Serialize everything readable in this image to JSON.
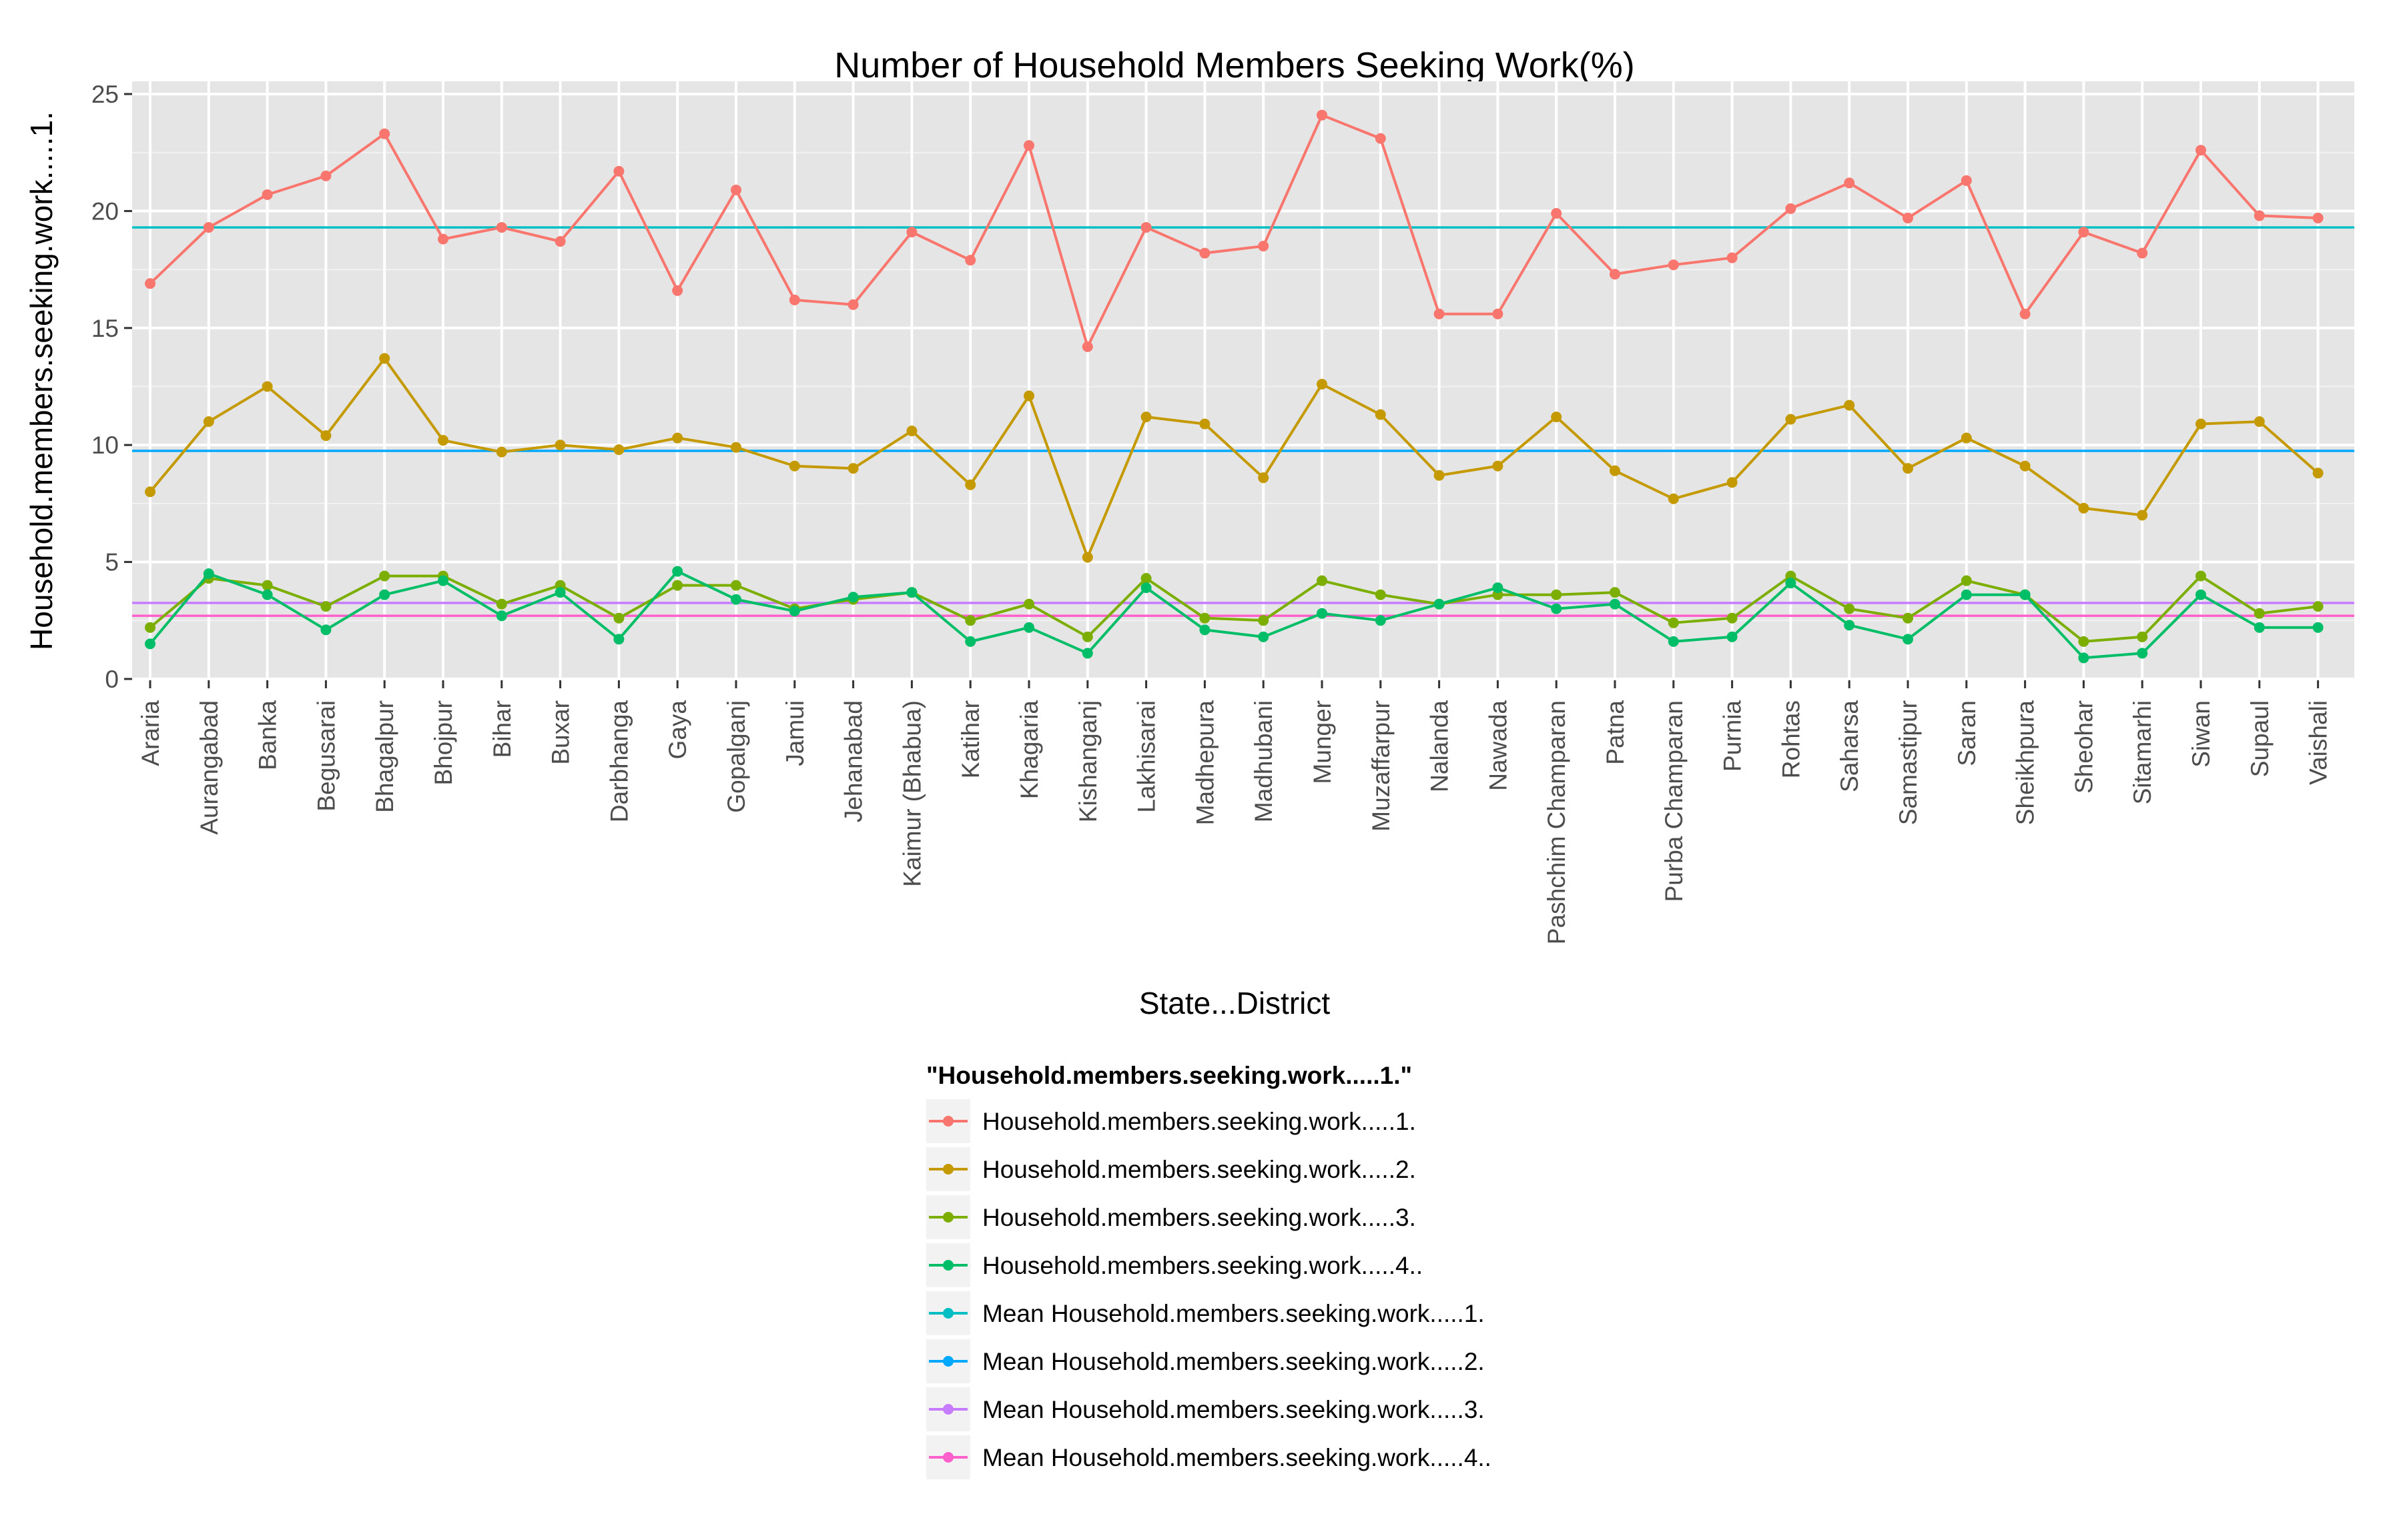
{
  "chart_data": {
    "type": "line",
    "title": "Number of Household Members Seeking Work(%)",
    "xlabel": "State...District",
    "ylabel": "Household.members.seeking.work.....1.",
    "ylim": [
      0,
      25
    ],
    "yticks": [
      0,
      5,
      10,
      15,
      20,
      25
    ],
    "grid": true,
    "legend_position": "bottom",
    "legend_title": "\"Household.members.seeking.work.....1.\"",
    "categories": [
      "Araria",
      "Aurangabad",
      "Banka",
      "Begusarai",
      "Bhagalpur",
      "Bhojpur",
      "Bihar",
      "Buxar",
      "Darbhanga",
      "Gaya",
      "Gopalganj",
      "Jamui",
      "Jehanabad",
      "Kaimur (Bhabua)",
      "Katihar",
      "Khagaria",
      "Kishanganj",
      "Lakhisarai",
      "Madhepura",
      "Madhubani",
      "Munger",
      "Muzaffarpur",
      "Nalanda",
      "Nawada",
      "Pashchim Champaran",
      "Patna",
      "Purba Champaran",
      "Purnia",
      "Rohtas",
      "Saharsa",
      "Samastipur",
      "Saran",
      "Sheikhpura",
      "Sheohar",
      "Sitamarhi",
      "Siwan",
      "Supaul",
      "Vaishali"
    ],
    "series": [
      {
        "name": "Household.members.seeking.work.....1.",
        "color": "#F8766D",
        "values": [
          16.9,
          19.3,
          20.7,
          21.5,
          23.3,
          18.8,
          19.3,
          18.7,
          21.7,
          16.6,
          20.9,
          16.2,
          16.0,
          19.1,
          17.9,
          22.8,
          14.2,
          19.3,
          18.2,
          18.5,
          24.1,
          23.1,
          15.6,
          15.6,
          19.9,
          17.3,
          17.7,
          18.0,
          20.1,
          21.2,
          19.7,
          21.3,
          15.6,
          19.1,
          18.2,
          22.6,
          19.8,
          19.7
        ]
      },
      {
        "name": "Household.members.seeking.work.....2.",
        "color": "#C49A00",
        "values": [
          8.0,
          11.0,
          12.5,
          10.4,
          13.7,
          10.2,
          9.7,
          10.0,
          9.8,
          10.3,
          9.9,
          9.1,
          9.0,
          10.6,
          8.3,
          12.1,
          5.2,
          11.2,
          10.9,
          8.6,
          12.6,
          11.3,
          8.7,
          9.1,
          11.2,
          8.9,
          7.7,
          8.4,
          11.1,
          11.7,
          9.0,
          10.3,
          9.1,
          7.3,
          7.0,
          10.9,
          11.0,
          8.8
        ]
      },
      {
        "name": "Household.members.seeking.work.....3.",
        "color": "#7CAE00",
        "values": [
          2.2,
          4.3,
          4.0,
          3.1,
          4.4,
          4.4,
          3.2,
          4.0,
          2.6,
          4.0,
          4.0,
          3.0,
          3.4,
          3.7,
          2.5,
          3.2,
          1.8,
          4.3,
          2.6,
          2.5,
          4.2,
          3.6,
          3.2,
          3.6,
          3.6,
          3.7,
          2.4,
          2.6,
          4.4,
          3.0,
          2.6,
          4.2,
          3.6,
          1.6,
          1.8,
          4.4,
          2.8,
          3.1
        ]
      },
      {
        "name": "Household.members.seeking.work.....4..",
        "color": "#00BE67",
        "values": [
          1.5,
          4.5,
          3.6,
          2.1,
          3.6,
          4.2,
          2.7,
          3.7,
          1.7,
          4.6,
          3.4,
          2.9,
          3.5,
          3.7,
          1.6,
          2.2,
          1.1,
          3.9,
          2.1,
          1.8,
          2.8,
          2.5,
          3.2,
          3.9,
          3.0,
          3.2,
          1.6,
          1.8,
          4.1,
          2.3,
          1.7,
          3.6,
          3.6,
          0.9,
          1.1,
          3.6,
          2.2,
          2.2
        ]
      }
    ],
    "mean_lines": [
      {
        "name": "Mean Household.members.seeking.work.....1.",
        "color": "#00BFC4",
        "value": 19.3
      },
      {
        "name": "Mean Household.members.seeking.work.....2.",
        "color": "#00A9FF",
        "value": 9.75
      },
      {
        "name": "Mean Household.members.seeking.work.....3.",
        "color": "#C77CFF",
        "value": 3.25
      },
      {
        "name": "Mean Household.members.seeking.work.....4..",
        "color": "#FF61CC",
        "value": 2.7
      }
    ]
  }
}
